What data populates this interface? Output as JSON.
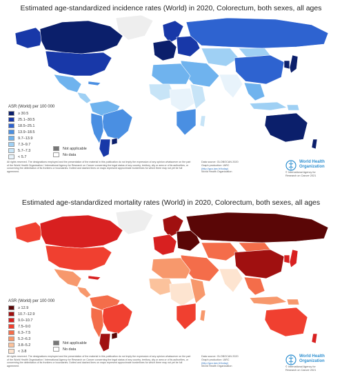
{
  "panels": [
    {
      "id": "incidence",
      "title": "Estimated age-standardized incidence rates (World) in 2020, Colorectum, both sexes, all ages",
      "legend_title": "ASR (World) per 100 000",
      "legend_items": [
        {
          "label": "≥ 30.5",
          "color": "#0b1f6b"
        },
        {
          "label": "25.1–30.5",
          "color": "#1838a8"
        },
        {
          "label": "18.5–25.1",
          "color": "#2e63d0"
        },
        {
          "label": "13.9–18.5",
          "color": "#4a8fe2"
        },
        {
          "label": "9.7–13.9",
          "color": "#6fb3ee"
        },
        {
          "label": "7.3–9.7",
          "color": "#9fd0f4"
        },
        {
          "label": "5.7–7.3",
          "color": "#c7e4f7"
        },
        {
          "label": "< 5.7",
          "color": "#e8f3fb"
        }
      ],
      "not_applicable": "Not applicable",
      "no_data": "No data",
      "disclaimer": "All rights reserved. The designations employed and the presentation of the material in this publication do not imply the expression of any opinion whatsoever on the part of the World Health Organization / International Agency for Research on Cancer concerning the legal status of any country, territory, city or area or of its authorities, or concerning the delimitation of its frontiers or boundaries. Dotted and dashed lines on maps represent approximate borderlines for which there may not yet be full agreement.",
      "source_line1": "Data source: GLOBOCAN 2020",
      "source_line2": "Graph production: IARC",
      "source_link": "(http://gco.iarc.fr/today)",
      "source_line3": "World Health Organization",
      "who_name_1": "World Health",
      "who_name_2": "Organization",
      "iarc_1": "© International Agency for",
      "iarc_2": "Research on Cancer 2021",
      "regions": {
        "canada": "#0b1f6b",
        "alaska": "#1838a8",
        "usa": "#1838a8",
        "greenland": "#eeeeee",
        "mexico": "#6fb3ee",
        "central_america": "#9fd0f4",
        "cuba": "#4a8fe2",
        "brazil": "#4a8fe2",
        "south_america_north": "#6fb3ee",
        "andes": "#4a8fe2",
        "argentina": "#1838a8",
        "uruguay": "#0b1f6b",
        "western_europe": "#0b1f6b",
        "scandinavia": "#1838a8",
        "eastern_europe": "#1838a8",
        "russia": "#2e63d0",
        "central_asia": "#9fd0f4",
        "middle_east": "#6fb3ee",
        "north_africa": "#6fb3ee",
        "west_africa": "#c7e4f7",
        "central_africa": "#e8f3fb",
        "east_africa": "#c7e4f7",
        "southern_africa": "#4a8fe2",
        "madagascar": "#c7e4f7",
        "india": "#e8f3fb",
        "china": "#2e63d0",
        "mongolia": "#9fd0f4",
        "japan": "#0b1f6b",
        "korea": "#0b1f6b",
        "southeast_asia": "#6fb3ee",
        "indonesia": "#9fd0f4",
        "australia": "#0b1f6b",
        "new_zealand": "#0b1f6b",
        "png": "#9fd0f4"
      }
    },
    {
      "id": "mortality",
      "title": "Estimated age-standardized mortality rates (World) in 2020, Colorectum, both sexes, all ages",
      "legend_title": "ASR (World) per 100 000",
      "legend_items": [
        {
          "label": "≥ 12.9",
          "color": "#5a0606"
        },
        {
          "label": "10.7–12.9",
          "color": "#a01010"
        },
        {
          "label": "9.0–10.7",
          "color": "#d82020"
        },
        {
          "label": "7.5–9.0",
          "color": "#f04030"
        },
        {
          "label": "6.3–7.5",
          "color": "#f46d4a"
        },
        {
          "label": "5.2–6.3",
          "color": "#f7986c"
        },
        {
          "label": "3.8–5.2",
          "color": "#fbc29c"
        },
        {
          "label": "< 3.8",
          "color": "#fde4d0"
        }
      ],
      "not_applicable": "Not applicable",
      "no_data": "No data",
      "disclaimer": "All rights reserved. The designations employed and the presentation of the material in this publication do not imply the expression of any opinion whatsoever on the part of the World Health Organization / International Agency for Research on Cancer concerning the legal status of any country, territory, city or area or of its authorities, or concerning the delimitation of its frontiers or boundaries. Dotted and dashed lines on maps represent approximate borderlines for which there may not yet be full agreement.",
      "source_line1": "Data source: GLOBOCAN 2020",
      "source_line2": "Graph production: IARC",
      "source_link": "(http://gco.iarc.fr/today)",
      "source_line3": "World Health Organization",
      "who_name_1": "World Health",
      "who_name_2": "Organization",
      "iarc_1": "© International Agency for",
      "iarc_2": "Research on Cancer 2021",
      "regions": {
        "canada": "#d82020",
        "alaska": "#f04030",
        "usa": "#f04030",
        "greenland": "#eeeeee",
        "mexico": "#f7986c",
        "central_america": "#f7986c",
        "cuba": "#d82020",
        "brazil": "#f04030",
        "south_america_north": "#f46d4a",
        "andes": "#f46d4a",
        "argentina": "#a01010",
        "uruguay": "#5a0606",
        "western_europe": "#d82020",
        "scandinavia": "#a01010",
        "eastern_europe": "#5a0606",
        "russia": "#5a0606",
        "central_asia": "#f46d4a",
        "middle_east": "#f46d4a",
        "north_africa": "#f7986c",
        "west_africa": "#fbc29c",
        "central_africa": "#fde4d0",
        "east_africa": "#f7986c",
        "southern_africa": "#f04030",
        "madagascar": "#f7986c",
        "india": "#fde4d0",
        "china": "#a01010",
        "mongolia": "#f46d4a",
        "japan": "#d82020",
        "korea": "#d82020",
        "southeast_asia": "#f46d4a",
        "indonesia": "#f7986c",
        "australia": "#f04030",
        "new_zealand": "#d82020",
        "png": "#f7986c"
      }
    }
  ],
  "legend_colors": {
    "not_applicable": "#777777",
    "no_data": "#ffffff"
  }
}
